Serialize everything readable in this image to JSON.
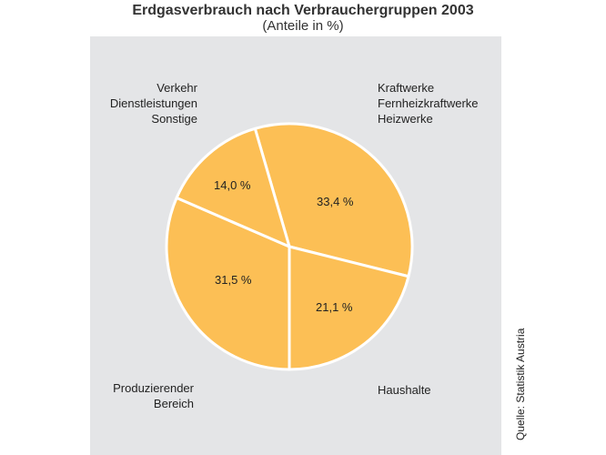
{
  "title": "Erdgasverbrauch nach Verbrauchergruppen 2003",
  "subtitle": "(Anteile in %)",
  "source": "Quelle: Statistik Austria",
  "colors": {
    "slice": "#fcbf55",
    "background": "#e4e5e7",
    "separator": "#ffffff"
  },
  "slices": [
    {
      "label_lines": [
        "Kraftwerke",
        "Fernheizkraftwerke",
        "Heizwerke"
      ],
      "value_label": "33,4 %"
    },
    {
      "label_lines": [
        "Haushalte"
      ],
      "value_label": "21,1 %"
    },
    {
      "label_lines": [
        "Produzierender",
        "Bereich"
      ],
      "value_label": "31,5 %"
    },
    {
      "label_lines": [
        "Verkehr",
        "Dienstleistungen",
        "Sonstige"
      ],
      "value_label": "14,0 %"
    }
  ],
  "chart_data": {
    "type": "pie",
    "title": "Erdgasverbrauch nach Verbrauchergruppen 2003",
    "subtitle": "(Anteile in %)",
    "categories": [
      "Kraftwerke, Fernheizkraftwerke, Heizwerke",
      "Haushalte",
      "Produzierender Bereich",
      "Verkehr, Dienstleistungen, Sonstige"
    ],
    "values": [
      33.4,
      21.1,
      31.5,
      14.0
    ],
    "unit": "%",
    "legend": "none (direct labels outside slices)",
    "source": "Quelle: Statistik Austria"
  }
}
